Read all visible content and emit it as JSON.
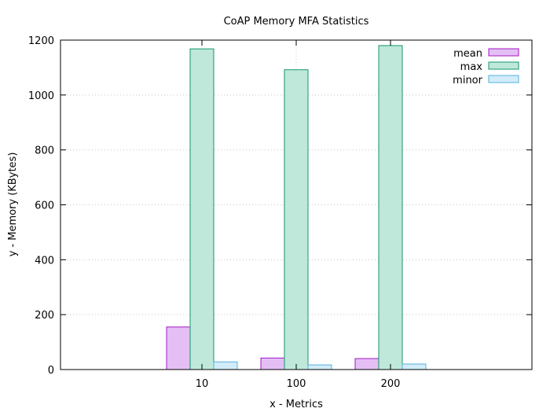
{
  "chart_data": {
    "type": "bar",
    "title": "CoAP Memory MFA Statistics",
    "xlabel": "x - Metrics",
    "ylabel": "y - Memory (KBytes)",
    "categories": [
      "10",
      "100",
      "200"
    ],
    "ylim": [
      0,
      1200
    ],
    "yticks": [
      "0",
      "200",
      "400",
      "600",
      "800",
      "1000",
      "1200"
    ],
    "grid": true,
    "legend_position": "top-right",
    "series": [
      {
        "name": "mean",
        "values": [
          155,
          42,
          40
        ],
        "fill": "#e4bff3",
        "stroke": "#a317c6"
      },
      {
        "name": "max",
        "values": [
          1168,
          1092,
          1180
        ],
        "fill": "#bfe8db",
        "stroke": "#13966b"
      },
      {
        "name": "minor",
        "values": [
          28,
          17,
          20
        ],
        "fill": "#d2ecf9",
        "stroke": "#57b1e0"
      }
    ]
  }
}
